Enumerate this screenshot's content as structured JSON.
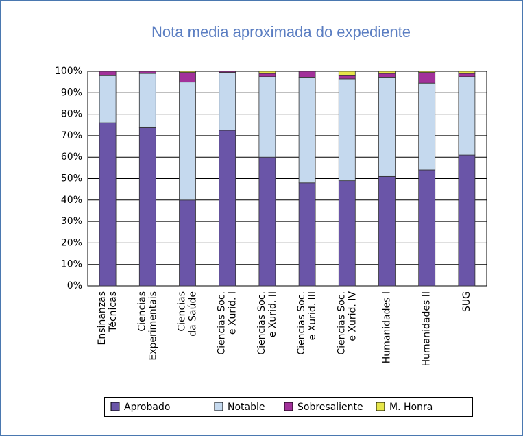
{
  "chart_data": {
    "type": "stacked_bar",
    "title": "Nota media aproximada do expediente",
    "categories": [
      "Ensinanzas\nTécnicas",
      "Ciencias\nExperimentais",
      "Ciencias\nda Saúde",
      "Ciencias Soc.\ne Xurid. I",
      "Ciencias Soc.\ne Xurid. II",
      "Ciencias Soc.\ne Xurid. III",
      "Ciencias Soc.\ne Xurid. IV",
      "Humanidades I",
      "Humanidades II",
      "SUG"
    ],
    "series": [
      {
        "name": "Aprobado",
        "color": "#6a55a8",
        "values": [
          76,
          74,
          40,
          72.5,
          60,
          48,
          49,
          51,
          54,
          61
        ]
      },
      {
        "name": "Notable",
        "color": "#c5d9ee",
        "values": [
          22,
          25,
          55,
          27,
          37.5,
          49,
          47.5,
          46,
          40.5,
          36.5
        ]
      },
      {
        "name": "Sobresaliente",
        "color": "#a2319a",
        "values": [
          2,
          1,
          4.5,
          0.5,
          1.5,
          3,
          1.5,
          2,
          5,
          1.5
        ]
      },
      {
        "name": "M. Honra",
        "color": "#e6e64a",
        "values": [
          0,
          0,
          0.5,
          0,
          1,
          0,
          2,
          1,
          0.5,
          1
        ]
      }
    ],
    "ylim": [
      0,
      100
    ],
    "yticks": [
      {
        "value": 0,
        "label": "0%"
      },
      {
        "value": 10,
        "label": "10%"
      },
      {
        "value": 20,
        "label": "20%"
      },
      {
        "value": 30,
        "label": "30%"
      },
      {
        "value": 40,
        "label": "40%"
      },
      {
        "value": 50,
        "label": "50%"
      },
      {
        "value": 60,
        "label": "60%"
      },
      {
        "value": 70,
        "label": "70%"
      },
      {
        "value": 80,
        "label": "80%"
      },
      {
        "value": 90,
        "label": "90%"
      },
      {
        "value": 100,
        "label": "100%"
      }
    ],
    "grid": true,
    "legend": "bottom"
  }
}
